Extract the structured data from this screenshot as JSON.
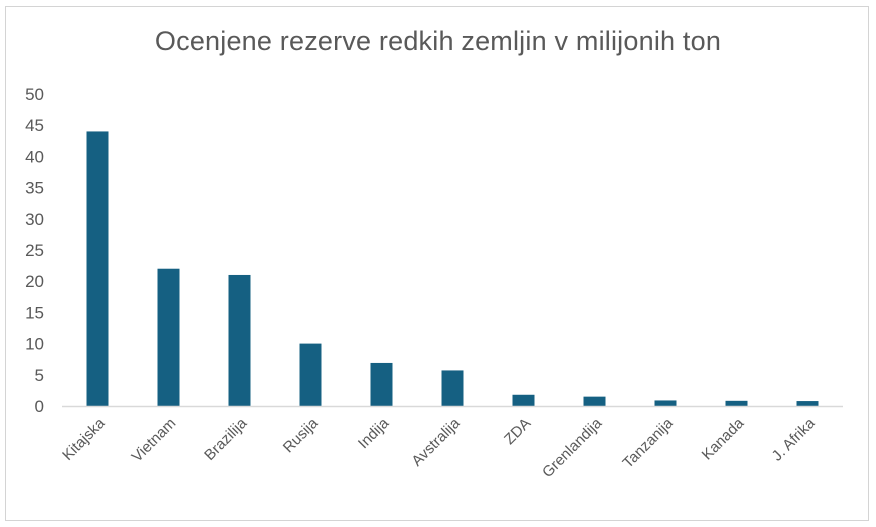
{
  "chart_data": {
    "type": "bar",
    "title": "Ocenjene rezerve redkih zemljin v milijonih ton",
    "xlabel": "",
    "ylabel": "",
    "categories": [
      "Kitajska",
      "Vietnam",
      "Brazilija",
      "Rusija",
      "Indija",
      "Avstralija",
      "ZDA",
      "Grenlandija",
      "Tanzanija",
      "Kanada",
      "J. Afrika"
    ],
    "values": [
      44,
      22,
      21,
      10,
      6.9,
      5.7,
      1.8,
      1.5,
      0.89,
      0.83,
      0.79
    ],
    "ylim": [
      0,
      50
    ],
    "yticks": [
      "0",
      "5",
      "10",
      "15",
      "20",
      "25",
      "30",
      "35",
      "40",
      "45",
      "50"
    ],
    "grid": false,
    "legend": "none",
    "bar_color": "#156082",
    "axis_color": "#d9d9d9"
  }
}
